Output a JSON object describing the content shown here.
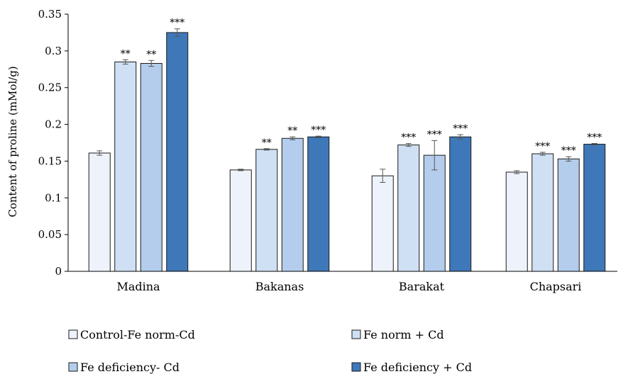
{
  "chart_data": {
    "type": "bar",
    "title": "",
    "xlabel": "",
    "ylabel": "Content of proline (mMol/g)",
    "ylim": [
      0,
      0.35
    ],
    "yticks": [
      0,
      0.05,
      0.1,
      0.15,
      0.2,
      0.25,
      0.3,
      0.35
    ],
    "ytick_labels": [
      "0",
      "0.05",
      "0.1",
      "0.15",
      "0.2",
      "0.25",
      "0.3",
      "0.35"
    ],
    "categories": [
      "Madina",
      "Bakanas",
      "Barakat",
      "Chapsari"
    ],
    "grid": false,
    "legend_position": "bottom",
    "series": [
      {
        "name": "Control-Fe norm-Cd",
        "color": "#eef3fb",
        "values": [
          0.161,
          0.138,
          0.13,
          0.135
        ],
        "errors": [
          0.003,
          0.001,
          0.009,
          0.002
        ],
        "sig": [
          "",
          "",
          "",
          ""
        ]
      },
      {
        "name": "Fe norm + Cd",
        "color": "#cfe0f4",
        "values": [
          0.285,
          0.166,
          0.172,
          0.16
        ],
        "errors": [
          0.003,
          0.001,
          0.002,
          0.002
        ],
        "sig": [
          "**",
          "**",
          "***",
          "***"
        ]
      },
      {
        "name": "Fe deficiency- Cd",
        "color": "#b4cdec",
        "values": [
          0.283,
          0.181,
          0.158,
          0.153
        ],
        "errors": [
          0.004,
          0.002,
          0.02,
          0.003
        ],
        "sig": [
          "**",
          "**",
          "***",
          "***"
        ]
      },
      {
        "name": "Fe deficiency + Cd",
        "color": "#3f78b9",
        "values": [
          0.325,
          0.183,
          0.183,
          0.173
        ],
        "errors": [
          0.005,
          0.001,
          0.003,
          0.001
        ],
        "sig": [
          "***",
          "***",
          "***",
          "***"
        ]
      }
    ]
  }
}
